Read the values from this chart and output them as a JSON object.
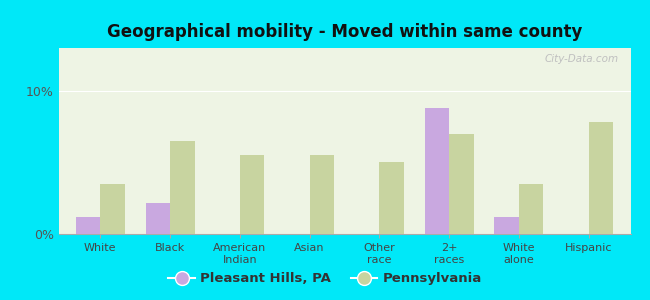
{
  "title": "Geographical mobility - Moved within same county",
  "categories": [
    "White",
    "Black",
    "American\nIndian",
    "Asian",
    "Other\nrace",
    "2+\nraces",
    "White\nalone",
    "Hispanic"
  ],
  "pleasant_hills": [
    1.2,
    2.2,
    0,
    0,
    0,
    8.8,
    1.2,
    0
  ],
  "pennsylvania": [
    3.5,
    6.5,
    5.5,
    5.5,
    5.0,
    7.0,
    3.5,
    7.8
  ],
  "bar_color_ph": "#c9a8e0",
  "bar_color_pa": "#c8d4a0",
  "background_outer": "#00e8f8",
  "background_inner": "#eef4e4",
  "ylim": [
    0,
    13
  ],
  "ytick_labels": [
    "0%",
    "10%"
  ],
  "ytick_vals": [
    0,
    10
  ],
  "legend_ph": "Pleasant Hills, PA",
  "legend_pa": "Pennsylvania",
  "bar_width": 0.35,
  "watermark": "City-Data.com"
}
